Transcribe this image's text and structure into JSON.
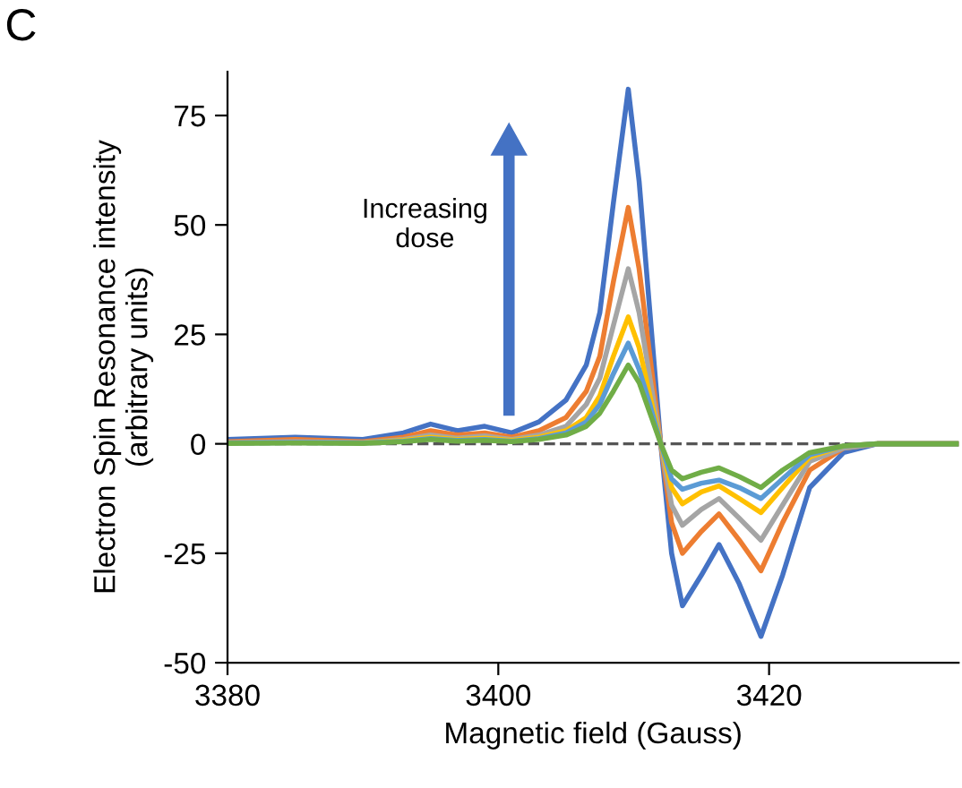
{
  "chart_data": {
    "type": "line",
    "title": "C",
    "xlabel": "Magnetic field (Gauss)",
    "ylabel": "Electron Spin Resonance intensity\n(arbitrary units)",
    "x": [
      3380,
      3385,
      3390,
      3393,
      3395,
      3397,
      3399,
      3401,
      3403,
      3405,
      3406.5,
      3407.5,
      3408.5,
      3409.6,
      3410.4,
      3411.2,
      3412,
      3412.8,
      3413.6,
      3415,
      3416.3,
      3417.8,
      3419.4,
      3421,
      3423,
      3425.5,
      3428,
      3434
    ],
    "series": [
      {
        "color": "#4472c4",
        "values": [
          1,
          1.5,
          1,
          2.5,
          4.5,
          3,
          4,
          2.5,
          5,
          10,
          18,
          30,
          55,
          81,
          60,
          30,
          0,
          -25,
          -37,
          -30,
          -23,
          -32,
          -44,
          -30,
          -10,
          -2,
          0,
          0
        ]
      },
      {
        "color": "#ed7d31",
        "values": [
          0.5,
          1,
          0.5,
          1.5,
          3,
          2,
          2.5,
          1.5,
          3,
          6,
          12,
          20,
          37,
          54,
          40,
          20,
          0,
          -18,
          -25,
          -20,
          -16,
          -22,
          -29,
          -18,
          -6,
          -1,
          0,
          0
        ]
      },
      {
        "color": "#a5a5a5",
        "values": [
          0.3,
          0.5,
          0.3,
          1,
          2,
          1.3,
          1.8,
          1,
          2,
          4,
          9,
          15,
          27,
          40,
          30,
          15,
          0,
          -14,
          -18.6,
          -15,
          -12.5,
          -17,
          -22,
          -14,
          -4,
          -1,
          0,
          0
        ]
      },
      {
        "color": "#ffc000",
        "values": [
          null,
          null,
          0.2,
          0.8,
          1.5,
          1,
          1.3,
          0.8,
          1.5,
          3,
          6,
          11,
          20,
          29,
          22,
          11,
          0,
          -10,
          -13.7,
          -11,
          -9.6,
          -12.5,
          -15.7,
          -10,
          -3,
          -0.5,
          0,
          0
        ]
      },
      {
        "color": "#5b9bd5",
        "values": [
          0.2,
          0.3,
          0.2,
          0.6,
          1.2,
          0.8,
          1,
          0.6,
          1.2,
          2.5,
          5,
          9,
          16,
          23,
          17,
          9,
          0,
          -8,
          -10.4,
          -9,
          -8.3,
          -10,
          -12.5,
          -8,
          -2.5,
          -0.5,
          0,
          0
        ]
      },
      {
        "color": "#70ad47",
        "values": [
          0.1,
          0.2,
          0.1,
          0.5,
          1,
          0.6,
          0.8,
          0.5,
          1,
          2,
          4,
          7,
          12,
          18,
          14,
          7,
          0,
          -6,
          -8,
          -6.5,
          -5.5,
          -7.5,
          -10,
          -6,
          -2,
          -0.5,
          0,
          0
        ]
      }
    ],
    "xlim": [
      3380,
      3434
    ],
    "xticks": [
      3380,
      3400,
      3420
    ],
    "ylim": [
      -50,
      85
    ],
    "yticks": [
      -50,
      -25,
      0,
      25,
      50,
      75
    ],
    "ref_lines": [
      {
        "axis": "y",
        "value": 0,
        "color": "#555555",
        "line_style": "dashed"
      }
    ],
    "annotations": [
      "Increasing\ndose"
    ],
    "grid": false,
    "legend": false,
    "marker": "none",
    "line_style": "solid"
  }
}
